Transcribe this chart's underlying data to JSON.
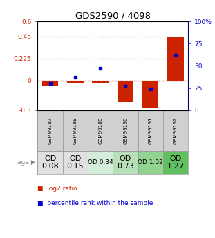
{
  "title": "GDS2590 / 4098",
  "samples": [
    "GSM99187",
    "GSM99188",
    "GSM99189",
    "GSM99190",
    "GSM99191",
    "GSM99192"
  ],
  "log2_ratio": [
    -0.05,
    -0.02,
    -0.03,
    -0.22,
    -0.27,
    0.44
  ],
  "percentile_rank": [
    30,
    37,
    47,
    27,
    24,
    62
  ],
  "age_labels": [
    "OD\n0.08",
    "OD\n0.15",
    "OD 0.34",
    "OD\n0.73",
    "OD 1.02",
    "OD\n1.27"
  ],
  "age_font_sizes": [
    8,
    8,
    6.5,
    8,
    6.5,
    8
  ],
  "age_bg_colors": [
    "#e0e0e0",
    "#e0e0e0",
    "#d4edda",
    "#b8e0b8",
    "#90d490",
    "#60c060"
  ],
  "sample_bg_color": "#d0d0d0",
  "bar_color": "#cc2200",
  "point_color": "#0000cc",
  "ylim_left": [
    -0.3,
    0.6
  ],
  "ylim_right": [
    0,
    100
  ],
  "yticks_left": [
    -0.3,
    0,
    0.225,
    0.45,
    0.6
  ],
  "yticks_right": [
    0,
    25,
    50,
    75,
    100
  ],
  "ytick_labels_left": [
    "-0.3",
    "0",
    "0.225",
    "0.45",
    "0.6"
  ],
  "ytick_labels_right": [
    "0",
    "25",
    "50",
    "75",
    "100%"
  ],
  "hlines_dotted": [
    0.225,
    0.45
  ],
  "bar_width": 0.65,
  "bg_color": "#ffffff"
}
